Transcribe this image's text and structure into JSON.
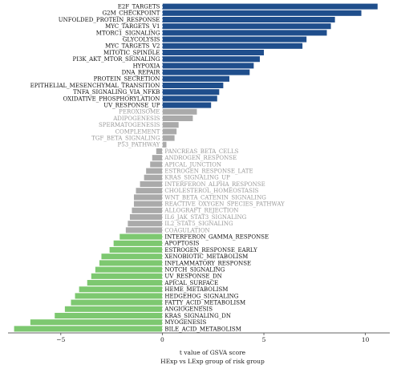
{
  "chart_data": {
    "type": "bar",
    "orientation": "horizontal",
    "xlabel": "t value of GSVA score",
    "subtitle": "HExp vs LExp group of risk group",
    "xlim": [
      -7.6,
      11.2
    ],
    "xticks": [
      -5,
      0,
      5,
      10
    ],
    "grid": false,
    "threshold": 1.9,
    "colors": {
      "up": "#1f4e8c",
      "down": "#7dc870",
      "ns": "#aaaaaa",
      "ns_text": "#9a9a9a",
      "sig_text": "#111111",
      "zero_line": "#ffffff"
    },
    "categories": [
      "E2F_TARGETS",
      "G2M_CHECKPOINT",
      "UNFOLDED_PROTEIN_RESPONSE",
      "MYC_TARGETS_V1",
      "MTORC1_SIGNALING",
      "GLYCOLYSIS",
      "MYC_TARGETS_V2",
      "MITOTIC_SPINDLE",
      "PI3K_AKT_MTOR_SIGNALING",
      "HYPOXIA",
      "DNA_REPAIR",
      "PROTEIN_SECRETION",
      "EPITHELIAL_MESENCHYMAL_TRANSITION",
      "TNFA_SIGNALING_VIA_NFKB",
      "OXIDATIVE_PHOSPHORYLATION",
      "UV_RESPONSE_UP",
      "PEROXISOME",
      "ADIPOGENESIS",
      "SPERMATOGENESIS",
      "COMPLEMENT",
      "TGF_BETA_SIGNALING",
      "P53_PATHWAY",
      "PANCREAS_BETA_CELLS",
      "ANDROGEN_RESPONSE",
      "APICAL_JUNCTION",
      "ESTROGEN_RESPONSE_LATE",
      "KRAS_SIGNALING_UP",
      "INTERFERON_ALPHA_RESPONSE",
      "CHOLESTEROL_HOMEOSTASIS",
      "WNT_BETA_CATENIN_SIGNALING",
      "REACTIVE_OXYGEN_SPECIES_PATHWAY",
      "ALLOGRAFT_REJECTION",
      "IL6_JAK_STAT3_SIGNALING",
      "IL2_STAT5_SIGNALING",
      "COAGULATION",
      "INTERFERON_GAMMA_RESPONSE",
      "APOPTOSIS",
      "ESTROGEN_RESPONSE_EARLY",
      "XENOBIOTIC_METABOLISM",
      "INFLAMMATORY_RESPONSE",
      "NOTCH_SIGNALING",
      "UV_RESPONSE_DN",
      "APICAL_SURFACE",
      "HEME_METABOLISM",
      "HEDGEHOG_SIGNALING",
      "FATTY_ACID_METABOLISM",
      "ANGIOGENESIS",
      "KRAS_SIGNALING_DN",
      "MYOGENESIS",
      "BILE_ACID_METABOLISM"
    ],
    "values": [
      10.6,
      9.8,
      8.5,
      8.3,
      8.1,
      7.1,
      6.9,
      5.0,
      4.8,
      4.5,
      4.3,
      3.3,
      3.0,
      2.8,
      2.7,
      2.4,
      1.7,
      1.5,
      0.8,
      0.7,
      0.6,
      0.2,
      -0.3,
      -0.5,
      -0.6,
      -0.8,
      -0.9,
      -1.1,
      -1.3,
      -1.4,
      -1.4,
      -1.5,
      -1.6,
      -1.7,
      -1.8,
      -2.1,
      -2.4,
      -2.6,
      -3.0,
      -3.1,
      -3.3,
      -3.5,
      -3.7,
      -4.1,
      -4.3,
      -4.5,
      -4.8,
      -5.3,
      -6.5,
      -7.3
    ]
  }
}
